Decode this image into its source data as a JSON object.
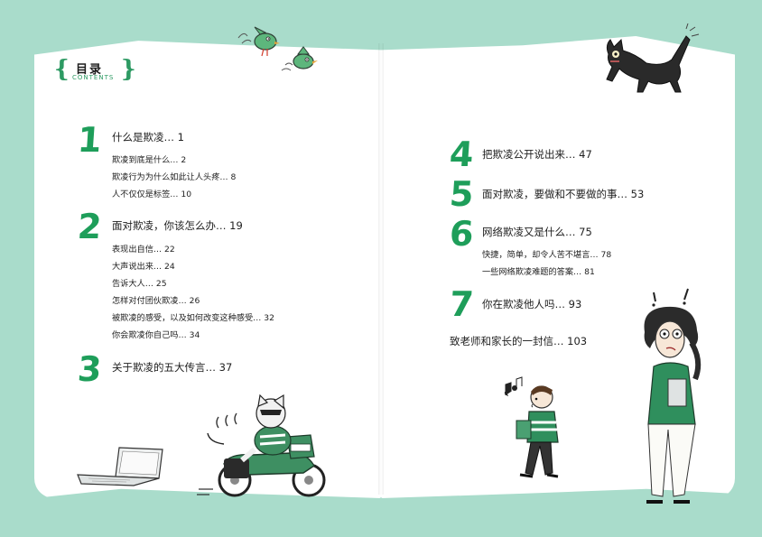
{
  "header": {
    "title": "目录",
    "subtitle": "CONTENTS"
  },
  "chapters": [
    {
      "num": "1",
      "title": "什么是欺凌… 1",
      "subs": [
        "欺凌到底是什么… 2",
        "欺凌行为为什么如此让人头疼… 8",
        "人不仅仅是标签… 10"
      ]
    },
    {
      "num": "2",
      "title": "面对欺凌，你该怎么办… 19",
      "subs": [
        "表现出自信… 22",
        "大声说出来… 24",
        "告诉大人… 25",
        "怎样对付团伙欺凌… 26",
        "被欺凌的感受，以及如何改变这种感受… 32",
        "你会欺凌你自己吗… 34"
      ]
    },
    {
      "num": "3",
      "title": "关于欺凌的五大传言… 37",
      "subs": []
    },
    {
      "num": "4",
      "title": "把欺凌公开说出来… 47",
      "subs": []
    },
    {
      "num": "5",
      "title": "面对欺凌，要做和不要做的事… 53",
      "subs": []
    },
    {
      "num": "6",
      "title": "网络欺凌又是什么… 75",
      "subs": [
        "快捷，简单，却令人苦不堪言… 78",
        "一些网络欺凌难题的答案… 81"
      ]
    },
    {
      "num": "7",
      "title": "你在欺凌他人吗… 93",
      "subs": []
    }
  ],
  "letter": "致老师和家长的一封信… 103",
  "colors": {
    "accent": "#1e9e5a",
    "background": "#a9dccb",
    "page": "#ffffff"
  },
  "illustrations": [
    "birds-illustration",
    "black-cat-illustration",
    "laptop-illustration",
    "motorcycle-cat-illustration",
    "whistling-boy-illustration",
    "worried-woman-illustration"
  ]
}
